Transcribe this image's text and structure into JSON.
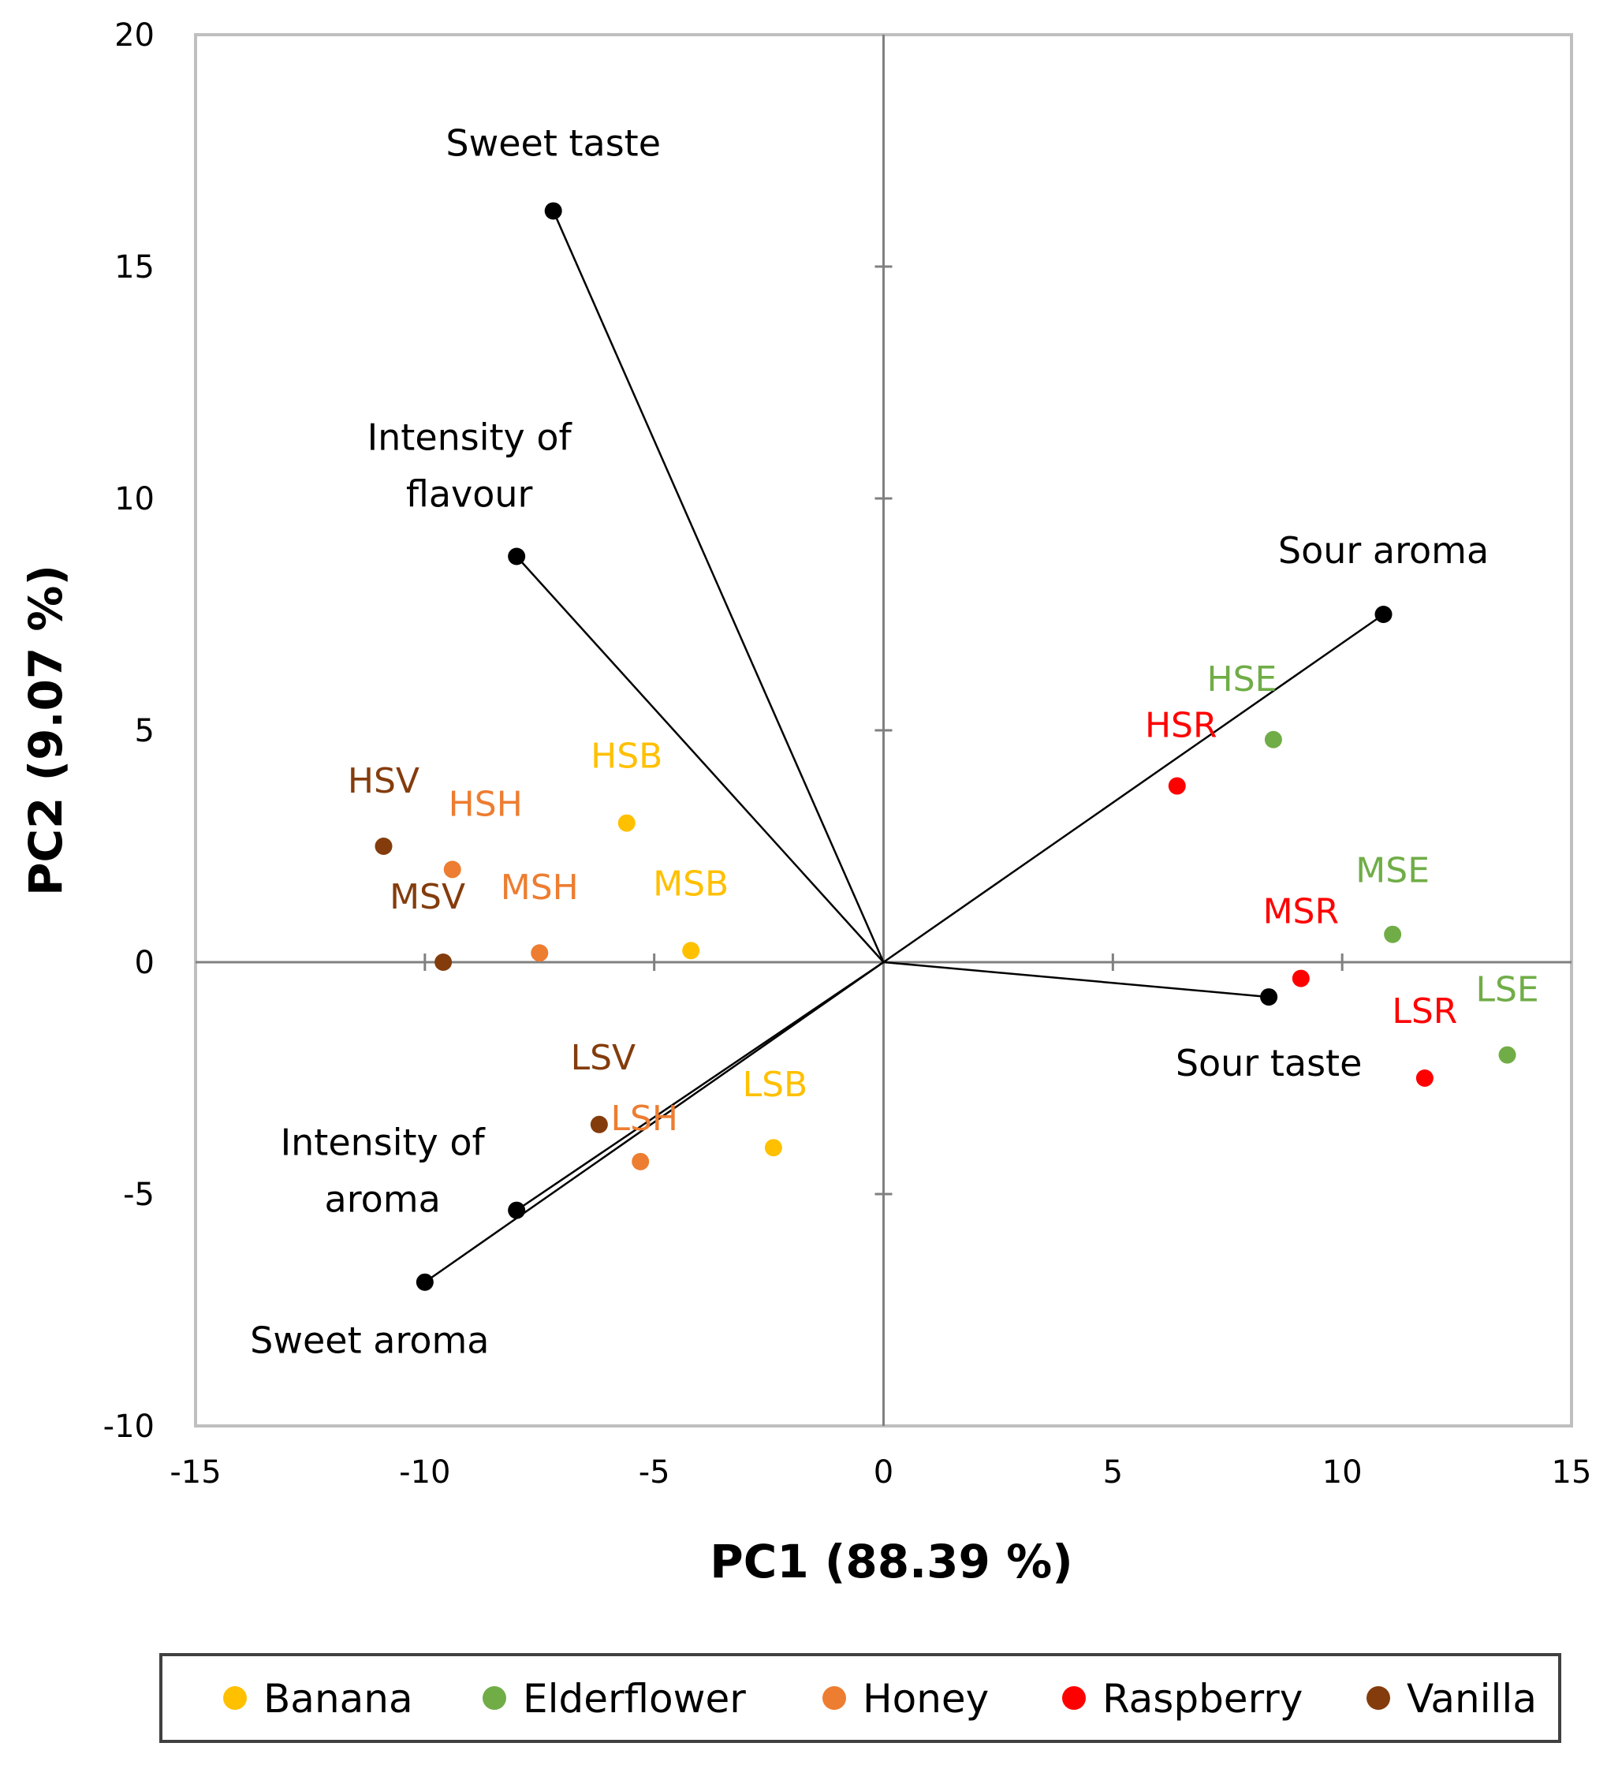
{
  "chart_data": {
    "type": "scatter",
    "subtype": "pca-biplot",
    "title": "",
    "xlabel": "PC1 (88.39 %)",
    "ylabel": "PC2 (9.07 %)",
    "xlim": [
      -15,
      15
    ],
    "ylim": [
      -10,
      20
    ],
    "xticks": [
      -15,
      -10,
      -5,
      0,
      5,
      10,
      15
    ],
    "yticks": [
      -10,
      -5,
      0,
      5,
      10,
      15,
      20
    ],
    "grid": false,
    "legend_position": "bottom",
    "groups": [
      {
        "name": "Banana",
        "color": "#FFC000"
      },
      {
        "name": "Elderflower",
        "color": "#70AD47"
      },
      {
        "name": "Honey",
        "color": "#ED7D31"
      },
      {
        "name": "Raspberry",
        "color": "#FF0000"
      },
      {
        "name": "Vanilla",
        "color": "#843C0C"
      }
    ],
    "samples": [
      {
        "label": "HSB",
        "group": "Banana",
        "x": -5.6,
        "y": 3.0
      },
      {
        "label": "MSB",
        "group": "Banana",
        "x": -4.2,
        "y": 0.25
      },
      {
        "label": "LSB",
        "group": "Banana",
        "x": -2.4,
        "y": -4.0
      },
      {
        "label": "HSE",
        "group": "Elderflower",
        "x": 8.5,
        "y": 4.8
      },
      {
        "label": "MSE",
        "group": "Elderflower",
        "x": 11.1,
        "y": 0.6
      },
      {
        "label": "LSE",
        "group": "Elderflower",
        "x": 13.6,
        "y": -2.0
      },
      {
        "label": "HSH",
        "group": "Honey",
        "x": -9.4,
        "y": 2.0
      },
      {
        "label": "MSH",
        "group": "Honey",
        "x": -7.5,
        "y": 0.2
      },
      {
        "label": "LSH",
        "group": "Honey",
        "x": -5.3,
        "y": -4.3
      },
      {
        "label": "HSR",
        "group": "Raspberry",
        "x": 6.4,
        "y": 3.8
      },
      {
        "label": "MSR",
        "group": "Raspberry",
        "x": 9.1,
        "y": -0.35
      },
      {
        "label": "LSR",
        "group": "Raspberry",
        "x": 11.8,
        "y": -2.5
      },
      {
        "label": "HSV",
        "group": "Vanilla",
        "x": -10.9,
        "y": 2.5
      },
      {
        "label": "MSV",
        "group": "Vanilla",
        "x": -9.6,
        "y": 0.0
      },
      {
        "label": "LSV",
        "group": "Vanilla",
        "x": -6.2,
        "y": -3.5
      }
    ],
    "attributes": [
      {
        "label": "Sweet taste",
        "x": -7.2,
        "y": 16.2
      },
      {
        "label": "Intensity of flavour",
        "x": -8.0,
        "y": 8.75
      },
      {
        "label": "Sour aroma",
        "x": 10.9,
        "y": 7.5
      },
      {
        "label": "Sour taste",
        "x": 8.4,
        "y": -0.75
      },
      {
        "label": "Intensity of aroma",
        "x": -8.0,
        "y": -5.35
      },
      {
        "label": "Sweet aroma",
        "x": -10.0,
        "y": -6.9
      }
    ]
  }
}
